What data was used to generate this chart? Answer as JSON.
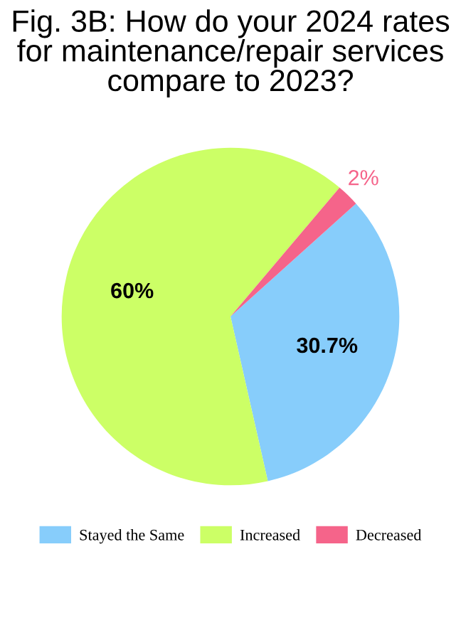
{
  "chart_data": {
    "type": "pie",
    "title": "Fig. 3B: How do your 2024 rates for maintenance/repair services compare to 2023?",
    "categories": [
      "Stayed the Same",
      "Increased",
      "Decreased"
    ],
    "values": [
      30.7,
      60,
      2
    ],
    "colors": [
      "#87cdfb",
      "#ccff66",
      "#f5648a"
    ],
    "value_labels": [
      "30.7%",
      "60%",
      "2%"
    ],
    "legend": "bottom"
  }
}
